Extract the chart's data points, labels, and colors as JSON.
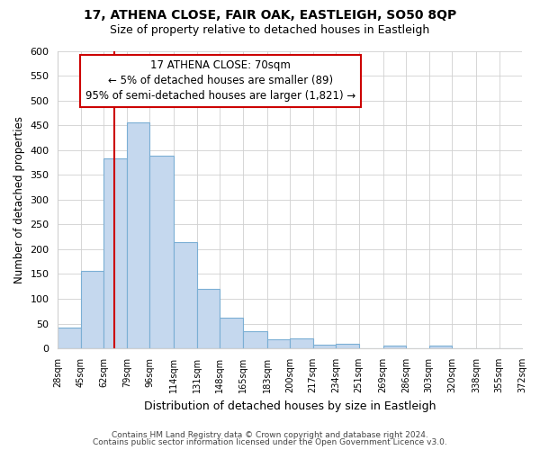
{
  "title": "17, ATHENA CLOSE, FAIR OAK, EASTLEIGH, SO50 8QP",
  "subtitle": "Size of property relative to detached houses in Eastleigh",
  "xlabel": "Distribution of detached houses by size in Eastleigh",
  "ylabel": "Number of detached properties",
  "bar_color": "#c5d8ee",
  "bar_edge_color": "#7bafd4",
  "vline_x": 70,
  "vline_color": "#cc0000",
  "annotation_line1": "17 ATHENA CLOSE: 70sqm",
  "annotation_line2": "← 5% of detached houses are smaller (89)",
  "annotation_line3": "95% of semi-detached houses are larger (1,821) →",
  "bin_edges": [
    28,
    45,
    62,
    79,
    96,
    114,
    131,
    148,
    165,
    183,
    200,
    217,
    234,
    251,
    269,
    286,
    303,
    320,
    338,
    355,
    372
  ],
  "bar_heights": [
    42,
    157,
    383,
    456,
    389,
    214,
    120,
    62,
    35,
    18,
    20,
    7,
    10,
    0,
    5,
    0,
    5,
    0,
    0,
    0
  ],
  "ylim": [
    0,
    600
  ],
  "yticks": [
    0,
    50,
    100,
    150,
    200,
    250,
    300,
    350,
    400,
    450,
    500,
    550,
    600
  ],
  "footnote1": "Contains HM Land Registry data © Crown copyright and database right 2024.",
  "footnote2": "Contains public sector information licensed under the Open Government Licence v3.0.",
  "bg_color": "#ffffff",
  "grid_color": "#d0d0d0"
}
